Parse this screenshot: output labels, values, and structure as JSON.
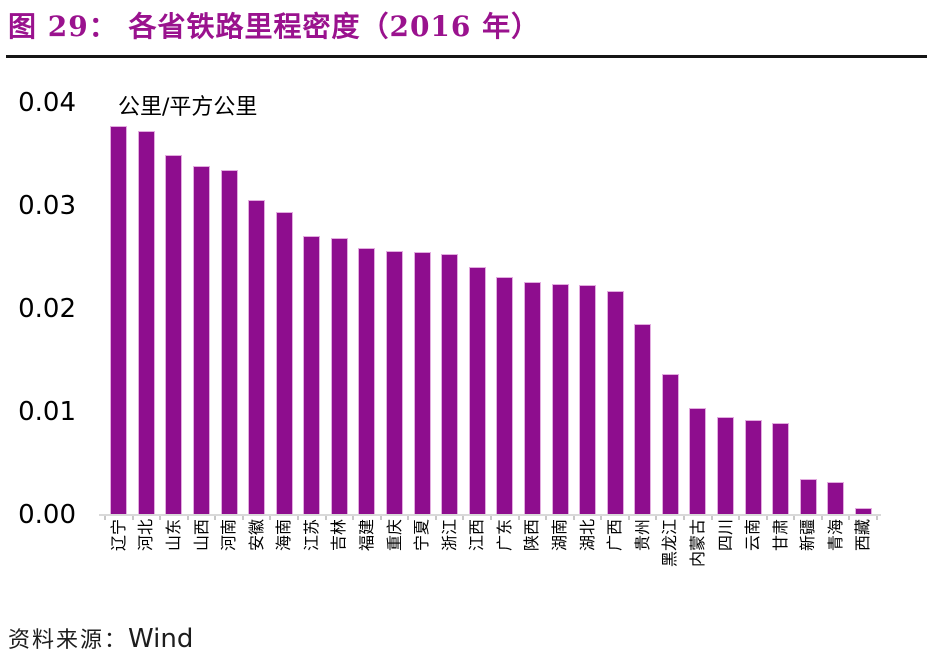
{
  "figure": {
    "title": "图 29：  各省铁路里程密度（2016 年）",
    "source_label": "资料来源：",
    "source_value": "Wind"
  },
  "colors": {
    "title": "#9A128E",
    "bar": "#8E0D8E",
    "axis_line": "#D9D9D9",
    "tick": "#C8C8C8",
    "rule": "#151515",
    "text": "#000000"
  },
  "chart_data": {
    "type": "bar",
    "title": "各省铁路里程密度（2016 年）",
    "unit_label": "公里/平方公里",
    "xlabel": "",
    "ylabel": "公里/平方公里",
    "ylim": [
      0,
      0.04
    ],
    "y_ticks": [
      0.0,
      0.01,
      0.02,
      0.03,
      0.04
    ],
    "y_tick_labels": [
      "0.00",
      "0.01",
      "0.02",
      "0.03",
      "0.04"
    ],
    "grid": false,
    "legend_position": "none",
    "categories": [
      "辽宁",
      "河北",
      "山东",
      "山西",
      "河南",
      "安徽",
      "海南",
      "江苏",
      "吉林",
      "福建",
      "重庆",
      "宁夏",
      "浙江",
      "江西",
      "广东",
      "陕西",
      "湖南",
      "湖北",
      "广西",
      "贵州",
      "黑龙江",
      "内蒙古",
      "四川",
      "云南",
      "甘肃",
      "新疆",
      "青海",
      "西藏"
    ],
    "values": [
      0.0377,
      0.0372,
      0.0349,
      0.0338,
      0.0334,
      0.0305,
      0.0293,
      0.027,
      0.0268,
      0.0258,
      0.0255,
      0.0254,
      0.0252,
      0.024,
      0.023,
      0.0225,
      0.0223,
      0.0222,
      0.0217,
      0.0185,
      0.0136,
      0.0103,
      0.0094,
      0.0091,
      0.0088,
      0.0034,
      0.0031,
      0.0006
    ]
  }
}
